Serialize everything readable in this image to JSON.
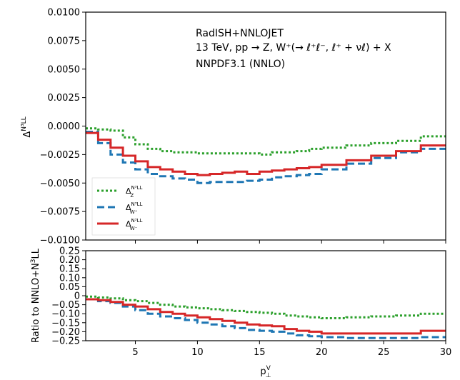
{
  "chart_data": [
    {
      "type": "line",
      "panel": "main",
      "ylabel": "Δ^{N³LL}",
      "ylim": [
        -0.01,
        0.01
      ],
      "yticks": [
        0.01,
        0.0075,
        0.005,
        0.0025,
        0.0,
        -0.0025,
        -0.005,
        -0.0075,
        -0.01
      ],
      "ytick_labels": [
        "0.0100",
        "0.0075",
        "0.0050",
        "0.0025",
        "0.0000",
        "−0.0025",
        "−0.0050",
        "−0.0075",
        "−0.0100"
      ],
      "xlim": [
        1,
        30
      ],
      "annotations": [
        "RadISH+NNLOJET",
        "13 TeV, pp → Z, W⁺(→ ℓ⁺ℓ⁻, ℓ⁺ + νℓ) + X",
        "NNPDF3.1 (NNLO)"
      ],
      "legend": {
        "placement": "lower-left"
      },
      "series": [
        {
          "name": "Δ_Z^{N³LL}",
          "color": "#2ca02c",
          "style": "dotted",
          "edges": [
            1,
            2,
            3,
            4,
            5,
            6,
            7,
            8,
            9,
            10,
            11,
            12,
            13,
            14,
            15,
            16,
            17,
            18,
            19,
            20,
            22,
            24,
            26,
            28,
            30
          ],
          "values": [
            -0.0002,
            -0.0003,
            -0.0004,
            -0.001,
            -0.0016,
            -0.002,
            -0.0022,
            -0.0023,
            -0.0023,
            -0.0024,
            -0.0024,
            -0.0024,
            -0.0024,
            -0.0024,
            -0.0025,
            -0.0023,
            -0.0023,
            -0.0022,
            -0.002,
            -0.0019,
            -0.0017,
            -0.0015,
            -0.0013,
            -0.0009
          ]
        },
        {
          "name": "Δ_{W⁺}^{N³LL}",
          "color": "#1f77b4",
          "style": "dashed",
          "edges": [
            1,
            2,
            3,
            4,
            5,
            6,
            7,
            8,
            9,
            10,
            11,
            12,
            13,
            14,
            15,
            16,
            17,
            18,
            19,
            20,
            22,
            24,
            26,
            28,
            30
          ],
          "values": [
            -0.0005,
            -0.0015,
            -0.0025,
            -0.0032,
            -0.0038,
            -0.0042,
            -0.0044,
            -0.0046,
            -0.0047,
            -0.005,
            -0.0049,
            -0.0049,
            -0.0049,
            -0.0048,
            -0.0047,
            -0.0045,
            -0.0044,
            -0.0043,
            -0.0042,
            -0.0038,
            -0.0033,
            -0.0028,
            -0.0023,
            -0.002
          ]
        },
        {
          "name": "Δ_{W⁻}^{N³LL}",
          "color": "#d62728",
          "style": "solid",
          "edges": [
            1,
            2,
            3,
            4,
            5,
            6,
            7,
            8,
            9,
            10,
            11,
            12,
            13,
            14,
            15,
            16,
            17,
            18,
            19,
            20,
            22,
            24,
            26,
            28,
            30
          ],
          "values": [
            -0.0006,
            -0.0012,
            -0.0019,
            -0.0026,
            -0.0031,
            -0.0036,
            -0.0038,
            -0.004,
            -0.0042,
            -0.0043,
            -0.0042,
            -0.0041,
            -0.004,
            -0.0042,
            -0.004,
            -0.0039,
            -0.0038,
            -0.0037,
            -0.0036,
            -0.0034,
            -0.003,
            -0.0026,
            -0.0022,
            -0.0017
          ]
        }
      ]
    },
    {
      "type": "line",
      "panel": "ratio",
      "xlabel": "p⊥^V",
      "ylabel": "Ratio to NNLO+N³LL",
      "ylim": [
        -0.25,
        0.25
      ],
      "yticks": [
        0.25,
        0.2,
        0.15,
        0.1,
        0.05,
        0,
        -0.05,
        -0.1,
        -0.15,
        -0.2,
        -0.25
      ],
      "ytick_labels": [
        "0.25",
        "0.20",
        "0.15",
        "0.10",
        "0.05",
        "0",
        "−0.05",
        "−0.10",
        "−0.15",
        "−0.20",
        "−0.25"
      ],
      "xlim": [
        1,
        30
      ],
      "xticks": [
        5,
        10,
        15,
        20,
        25,
        30
      ],
      "xtick_labels": [
        "5",
        "10",
        "15",
        "20",
        "25",
        "30"
      ],
      "series": [
        {
          "color": "#2ca02c",
          "style": "dotted",
          "edges": [
            1,
            2,
            3,
            4,
            5,
            6,
            7,
            8,
            9,
            10,
            11,
            12,
            13,
            14,
            15,
            16,
            17,
            18,
            19,
            20,
            22,
            24,
            26,
            28,
            30
          ],
          "values": [
            -0.005,
            -0.01,
            -0.015,
            -0.025,
            -0.03,
            -0.04,
            -0.05,
            -0.06,
            -0.065,
            -0.07,
            -0.075,
            -0.08,
            -0.085,
            -0.09,
            -0.095,
            -0.1,
            -0.11,
            -0.115,
            -0.12,
            -0.125,
            -0.12,
            -0.115,
            -0.11,
            -0.1
          ]
        },
        {
          "color": "#1f77b4",
          "style": "dashed",
          "edges": [
            1,
            2,
            3,
            4,
            5,
            6,
            7,
            8,
            9,
            10,
            11,
            12,
            13,
            14,
            15,
            16,
            17,
            18,
            19,
            20,
            22,
            24,
            26,
            28,
            30
          ],
          "values": [
            -0.02,
            -0.03,
            -0.04,
            -0.06,
            -0.08,
            -0.1,
            -0.115,
            -0.125,
            -0.135,
            -0.15,
            -0.16,
            -0.17,
            -0.18,
            -0.19,
            -0.195,
            -0.2,
            -0.21,
            -0.22,
            -0.225,
            -0.23,
            -0.235,
            -0.235,
            -0.235,
            -0.23
          ]
        },
        {
          "color": "#d62728",
          "style": "solid",
          "edges": [
            1,
            2,
            3,
            4,
            5,
            6,
            7,
            8,
            9,
            10,
            11,
            12,
            13,
            14,
            15,
            16,
            17,
            18,
            19,
            20,
            22,
            24,
            26,
            28,
            30
          ],
          "values": [
            -0.02,
            -0.025,
            -0.035,
            -0.05,
            -0.06,
            -0.075,
            -0.09,
            -0.1,
            -0.11,
            -0.12,
            -0.13,
            -0.14,
            -0.15,
            -0.16,
            -0.165,
            -0.17,
            -0.185,
            -0.195,
            -0.2,
            -0.21,
            -0.21,
            -0.21,
            -0.21,
            -0.195
          ]
        }
      ]
    }
  ]
}
